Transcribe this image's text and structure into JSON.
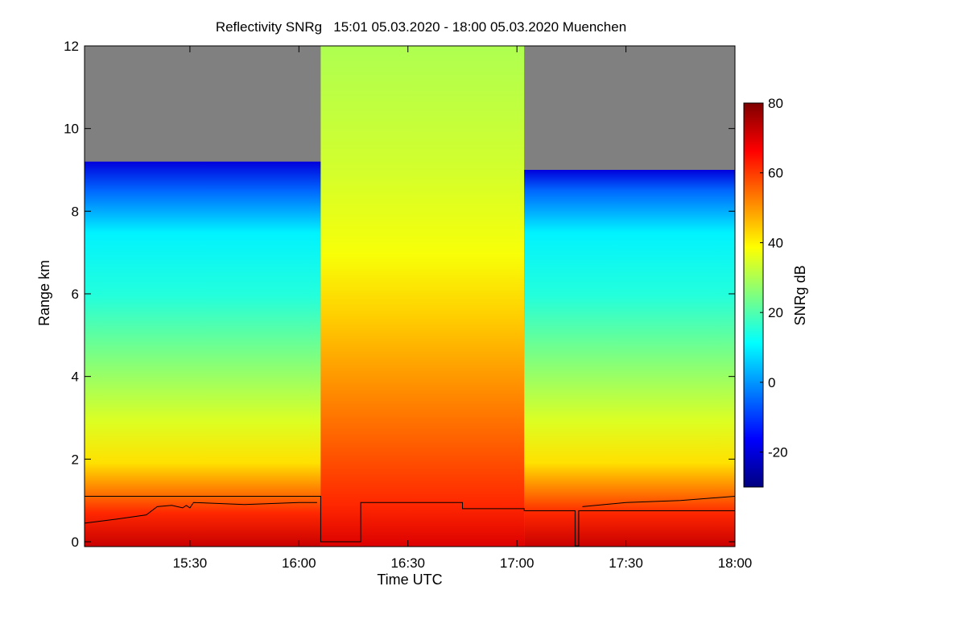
{
  "chart_data": {
    "type": "heatmap",
    "title": "Reflectivity SNRg   15:01 05.03.2020 - 18:00 05.03.2020 Muenchen",
    "xlabel": "Time UTC",
    "ylabel": "Range km",
    "colorbar_label": "SNRg dB",
    "xlim": [
      "15:01",
      "18:00"
    ],
    "ylim": [
      0,
      12
    ],
    "x_ticks": [
      "15:30",
      "16:00",
      "16:30",
      "17:00",
      "17:30",
      "18:00"
    ],
    "y_ticks": [
      "0",
      "2",
      "4",
      "6",
      "8",
      "10",
      "12"
    ],
    "colorbar_ticks": [
      "-20",
      "0",
      "20",
      "40",
      "60",
      "80"
    ],
    "colorbar_range": [
      -30,
      80
    ],
    "no_data_color": "#808080",
    "colormap": [
      "#00007f",
      "#0000ff",
      "#007fff",
      "#00ffff",
      "#7fff7f",
      "#ffff00",
      "#ff7f00",
      "#ff0000",
      "#7f0000"
    ],
    "segments": [
      {
        "start": "15:01",
        "end": "16:06",
        "echo_top_km": 9.2,
        "profile_db": [
          [
            0,
            72
          ],
          [
            0.8,
            62
          ],
          [
            1.2,
            55
          ],
          [
            2,
            42
          ],
          [
            3,
            35
          ],
          [
            4.5,
            25
          ],
          [
            6,
            15
          ],
          [
            7.5,
            10
          ],
          [
            8.5,
            -5
          ],
          [
            9.2,
            -20
          ]
        ]
      },
      {
        "start": "16:06",
        "end": "17:02",
        "echo_top_km": 12,
        "profile_db": [
          [
            0,
            70
          ],
          [
            1,
            62
          ],
          [
            2.5,
            56
          ],
          [
            4,
            50
          ],
          [
            5.5,
            44
          ],
          [
            7,
            38
          ],
          [
            9,
            34
          ],
          [
            12,
            30
          ]
        ]
      },
      {
        "start": "17:02",
        "end": "18:00",
        "echo_top_km": 9.0,
        "profile_db": [
          [
            0,
            72
          ],
          [
            0.8,
            62
          ],
          [
            1.2,
            55
          ],
          [
            2,
            42
          ],
          [
            3,
            35
          ],
          [
            4.5,
            25
          ],
          [
            6,
            15
          ],
          [
            7.5,
            10
          ],
          [
            8.5,
            -5
          ],
          [
            9.0,
            -20
          ]
        ]
      }
    ],
    "lines": [
      {
        "name": "",
        "points": [
          [
            "15:01",
            1.1
          ],
          [
            "16:06",
            1.1
          ],
          [
            "16:06",
            0
          ],
          [
            "16:17",
            0
          ],
          [
            "16:17",
            0.95
          ],
          [
            "16:45",
            0.95
          ],
          [
            "16:45",
            0.8
          ],
          [
            "17:02",
            0.8
          ],
          [
            "17:02",
            0.75
          ],
          [
            "17:16",
            0.75
          ],
          [
            "17:16",
            -0.1
          ],
          [
            "17:17",
            -0.1
          ],
          [
            "17:17",
            0.75
          ],
          [
            "18:00",
            0.75
          ]
        ]
      },
      {
        "name": "",
        "points": [
          [
            "15:01",
            0.45
          ],
          [
            "15:10",
            0.55
          ],
          [
            "15:18",
            0.65
          ],
          [
            "15:21",
            0.85
          ],
          [
            "15:25",
            0.88
          ],
          [
            "15:28",
            0.82
          ],
          [
            "15:29",
            0.88
          ],
          [
            "15:30",
            0.82
          ],
          [
            "15:31",
            0.95
          ],
          [
            "15:45",
            0.9
          ],
          [
            "16:00",
            0.95
          ],
          [
            "16:05",
            0.95
          ]
        ]
      },
      {
        "name": "",
        "points": [
          [
            "17:18",
            0.85
          ],
          [
            "17:30",
            0.95
          ],
          [
            "17:45",
            1.0
          ],
          [
            "18:00",
            1.1
          ]
        ]
      }
    ]
  }
}
